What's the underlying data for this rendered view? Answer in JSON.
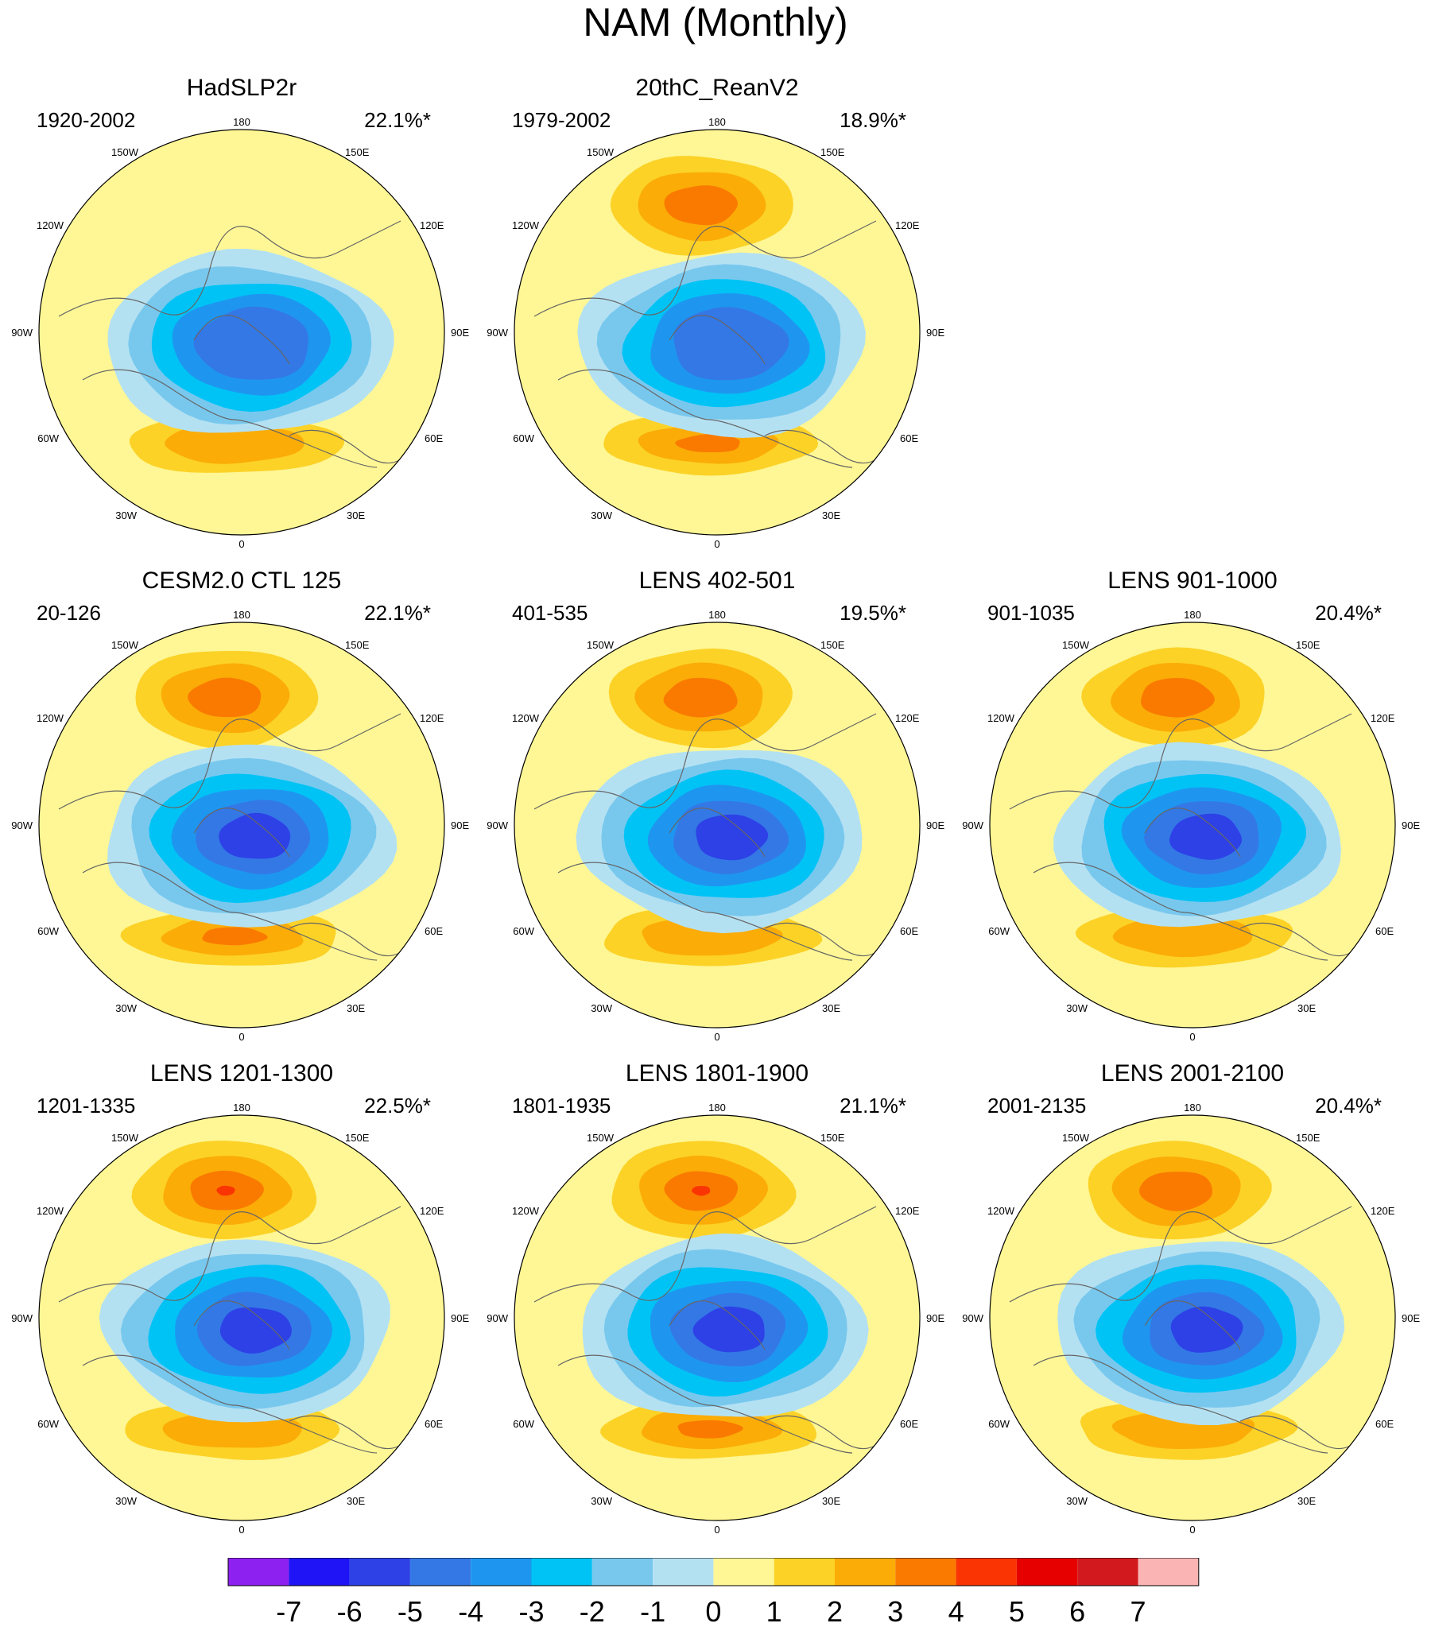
{
  "title": "NAM (Monthly)",
  "lon_labels": {
    "top": "180",
    "upper_left": "150W",
    "upper_right": "150E",
    "upper_mid_left": "120W",
    "upper_mid_right": "120E",
    "left": "90W",
    "right": "90E",
    "lower_mid_left": "60W",
    "lower_mid_right": "60E",
    "lower_left": "30W",
    "lower_right": "30E",
    "bottom": "0"
  },
  "panels": [
    {
      "title": "HadSLP2r",
      "years": "1920-2002",
      "variance": "22.1%*",
      "row": 0,
      "col": 0,
      "positive_center_strength": 0,
      "negative_min": -5,
      "atlantic_max": 2
    },
    {
      "title": "20thC_ReanV2",
      "years": "1979-2002",
      "variance": "18.9%*",
      "row": 0,
      "col": 1,
      "positive_center_strength": 3,
      "negative_min": -5,
      "atlantic_max": 3
    },
    {
      "title": "CESM2.0 CTL 125",
      "years": "20-126",
      "variance": "22.1%*",
      "row": 1,
      "col": 0,
      "positive_center_strength": 3,
      "negative_min": -6,
      "atlantic_max": 3
    },
    {
      "title": "LENS 402-501",
      "years": "401-535",
      "variance": "19.5%*",
      "row": 1,
      "col": 1,
      "positive_center_strength": 3,
      "negative_min": -6,
      "atlantic_max": 2
    },
    {
      "title": "LENS 901-1000",
      "years": "901-1035",
      "variance": "20.4%*",
      "row": 1,
      "col": 2,
      "positive_center_strength": 3,
      "negative_min": -6,
      "atlantic_max": 2
    },
    {
      "title": "LENS 1201-1300",
      "years": "1201-1335",
      "variance": "22.5%*",
      "row": 2,
      "col": 0,
      "positive_center_strength": 4,
      "negative_min": -6,
      "atlantic_max": 2
    },
    {
      "title": "LENS 1801-1900",
      "years": "1801-1935",
      "variance": "21.1%*",
      "row": 2,
      "col": 1,
      "positive_center_strength": 4,
      "negative_min": -6,
      "atlantic_max": 3
    },
    {
      "title": "LENS 2001-2100",
      "years": "2001-2135",
      "variance": "20.4%*",
      "row": 2,
      "col": 2,
      "positive_center_strength": 3,
      "negative_min": -6,
      "atlantic_max": 2
    }
  ],
  "colorbar": {
    "labels": [
      "-7",
      "-6",
      "-5",
      "-4",
      "-3",
      "-2",
      "-1",
      "0",
      "1",
      "2",
      "3",
      "4",
      "5",
      "6",
      "7"
    ],
    "colors": [
      "#8c21f0",
      "#1e14f5",
      "#2d41e6",
      "#3478e6",
      "#1e96f0",
      "#00c3f5",
      "#78c8ee",
      "#b4e1f2",
      "#fff795",
      "#fcd227",
      "#fbac07",
      "#fa7a00",
      "#fa3402",
      "#e60000",
      "#d21a1e",
      "#fbb4b4"
    ]
  },
  "styles": {
    "ocean_background": "#fff795",
    "coastline": "#666666"
  }
}
